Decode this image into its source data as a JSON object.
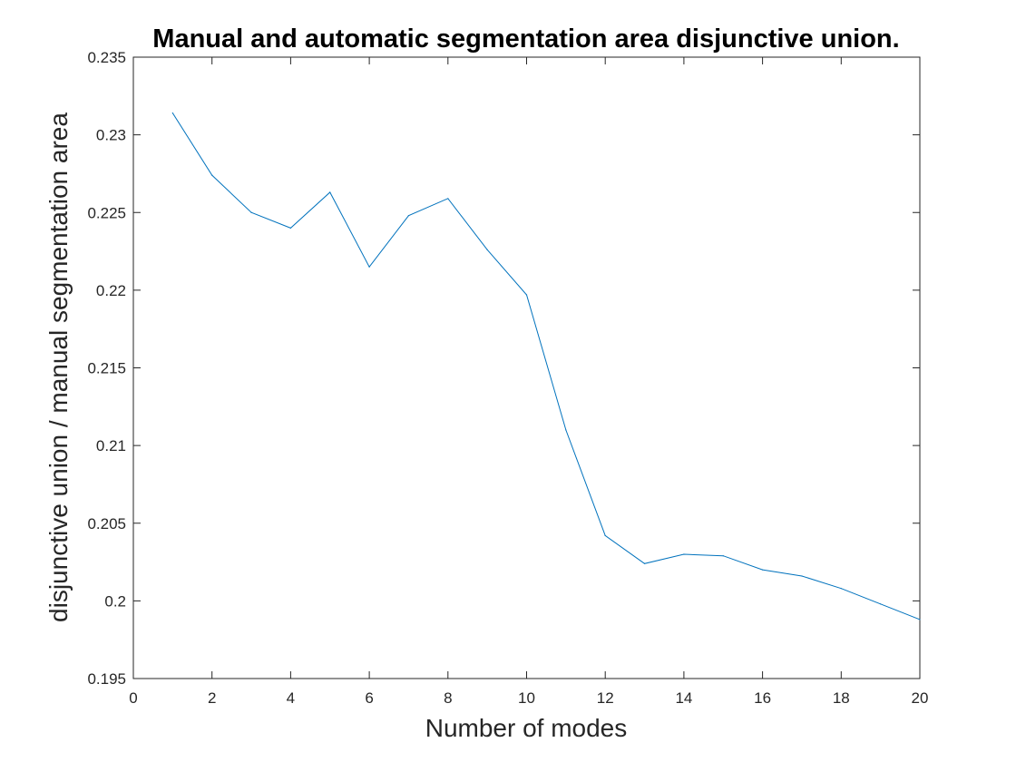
{
  "chart_data": {
    "type": "line",
    "title": "Manual and automatic segmentation area disjunctive union.",
    "xlabel": "Number of modes",
    "ylabel": "disjunctive union / manual segmentation area",
    "xlim": [
      0,
      20
    ],
    "ylim": [
      0.195,
      0.235
    ],
    "xticks": [
      0,
      2,
      4,
      6,
      8,
      10,
      12,
      14,
      16,
      18,
      20
    ],
    "xtick_labels": [
      "0",
      "2",
      "4",
      "6",
      "8",
      "10",
      "12",
      "14",
      "16",
      "18",
      "20"
    ],
    "yticks": [
      0.195,
      0.2,
      0.205,
      0.21,
      0.215,
      0.22,
      0.225,
      0.23,
      0.235
    ],
    "ytick_labels": [
      "0.195",
      "0.2",
      "0.205",
      "0.21",
      "0.215",
      "0.22",
      "0.225",
      "0.23",
      "0.235"
    ],
    "grid": false,
    "legend": "none",
    "series": [
      {
        "color": "#0072BD",
        "x": [
          1,
          2,
          3,
          4,
          5,
          6,
          7,
          8,
          9,
          10,
          11,
          12,
          13,
          14,
          15,
          16,
          17,
          18,
          19,
          20
        ],
        "values": [
          0.2314,
          0.2274,
          0.225,
          0.224,
          0.2263,
          0.2215,
          0.2248,
          0.2259,
          0.2226,
          0.2197,
          0.211,
          0.2042,
          0.2024,
          0.203,
          0.2029,
          0.202,
          0.2016,
          0.2008,
          0.1998,
          0.1988
        ]
      }
    ]
  }
}
